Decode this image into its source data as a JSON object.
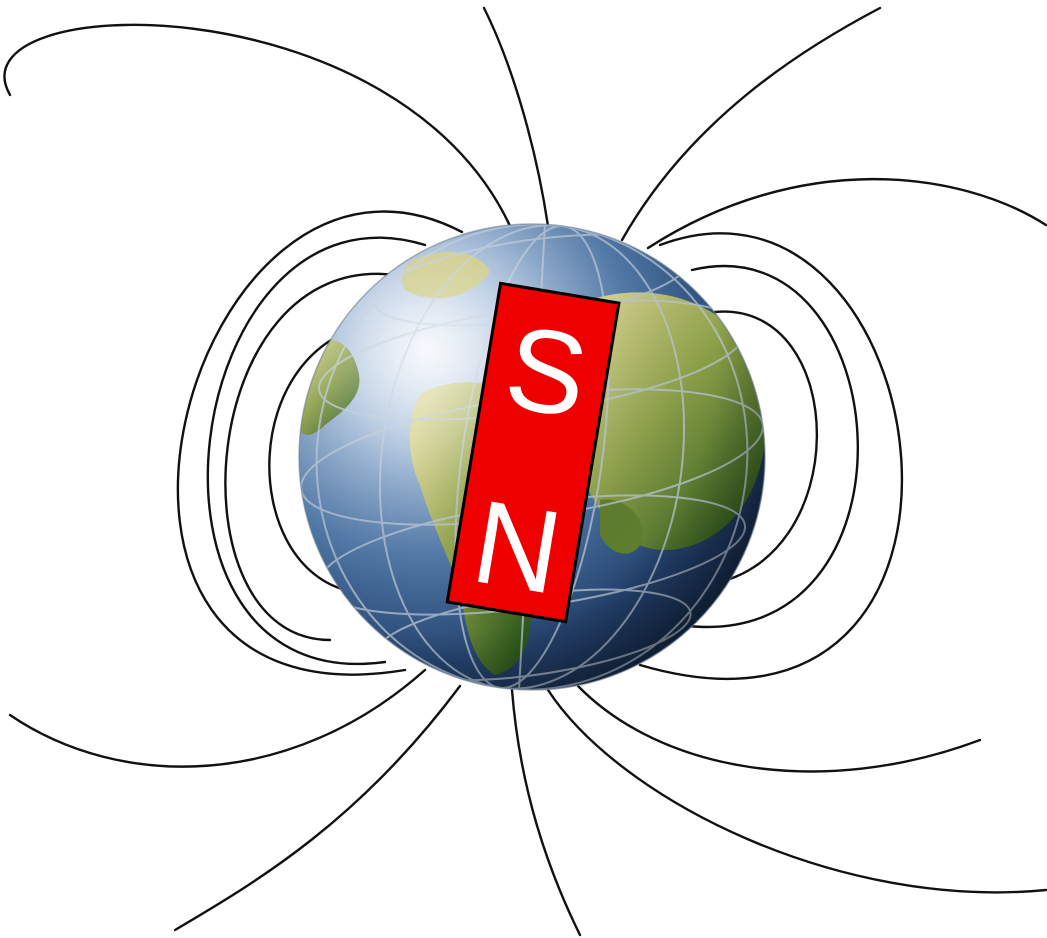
{
  "magnet": {
    "top_pole": "S",
    "bottom_pole": "N"
  },
  "colors": {
    "magnet_fill": "#ee0000",
    "magnet_outline": "#000000",
    "pole_letters": "#ffffff",
    "field_lines": "#111111",
    "ocean_light": "#dbe6f2",
    "ocean_mid": "#4f78a8",
    "ocean_dark": "#142744",
    "land_light": "#c5c37a",
    "land_dark": "#3f6a22",
    "grid": "#b9c6d6"
  }
}
